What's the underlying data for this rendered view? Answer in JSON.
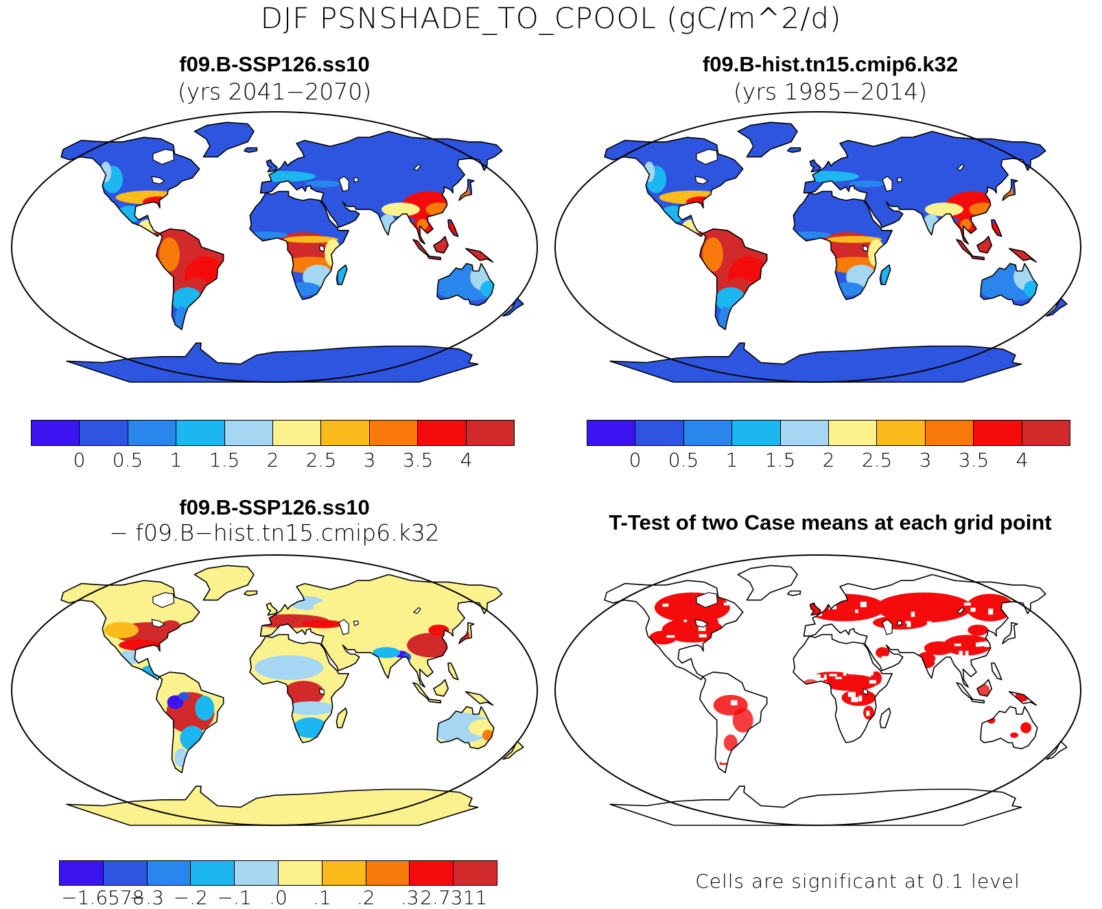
{
  "figure": {
    "title": "DJF PSNSHADE_TO_CPOOL (gC/m^2/d)"
  },
  "panels": {
    "top_left": {
      "title": "f09.B-SSP126.ss10",
      "subtitle": "(yrs 2041−2070)"
    },
    "top_right": {
      "title": "f09.B-hist.tn15.cmip6.k32",
      "subtitle": "(yrs 1985−2014)"
    },
    "bottom_left": {
      "title": "f09.B-SSP126.ss10",
      "subtitle": "− f09.B−hist.tn15.cmip6.k32"
    },
    "bottom_right": {
      "title": "T-Test of two Case means at each grid point",
      "note": "Cells are significant at 0.1 level"
    }
  },
  "colorbars": {
    "absolute": {
      "colors": [
        "#3b14f0",
        "#2e55e0",
        "#2a86ec",
        "#1cb6f0",
        "#a6d7f2",
        "#fbf28e",
        "#fbbb1a",
        "#f77a0a",
        "#f40c0c",
        "#d22a2a"
      ],
      "labels": [
        "0",
        "0.5",
        "1",
        "1.5",
        "2",
        "2.5",
        "3",
        "3.5",
        "4"
      ]
    },
    "difference": {
      "colors": [
        "#3b14f0",
        "#2e55e0",
        "#2a86ec",
        "#1cb6f0",
        "#a6d7f2",
        "#fbf28e",
        "#fbbb1a",
        "#f77a0a",
        "#f40c0c",
        "#d22a2a"
      ],
      "labels": [
        "−1.6578",
        "−.3",
        "−.2",
        "−.1",
        ".0",
        ".1",
        ".2",
        ".3",
        "2.7311"
      ]
    }
  },
  "significance_color": "#f40c0c"
}
